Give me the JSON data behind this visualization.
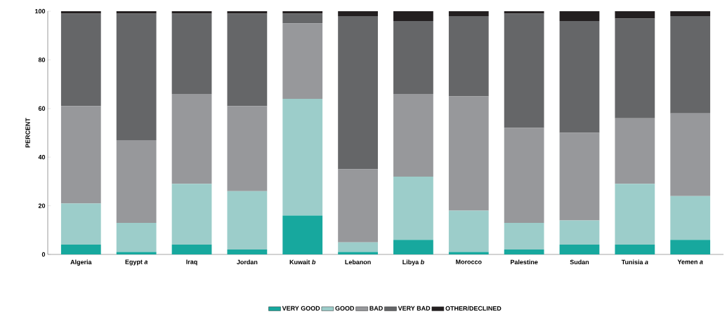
{
  "chart_data": {
    "type": "bar",
    "stacked": true,
    "ylabel": "PERCENT",
    "categories": [
      "Algeria",
      "Egypt *a*",
      "Iraq",
      "Jordan",
      "Kuwait *b*",
      "Lebanon",
      "Libya *b*",
      "Morocco",
      "Palestine",
      "Sudan",
      "Tunisia *a*",
      "Yemen *a*"
    ],
    "series": [
      {
        "name": "VERY GOOD",
        "color": "#17a89e",
        "values": [
          4,
          1,
          4,
          2,
          16,
          1,
          6,
          1,
          2,
          4,
          4,
          6
        ]
      },
      {
        "name": "GOOD",
        "color": "#9ccdca",
        "values": [
          17,
          12,
          25,
          24,
          48,
          4,
          26,
          17,
          11,
          10,
          25,
          18
        ]
      },
      {
        "name": "BAD",
        "color": "#97989b",
        "values": [
          40,
          34,
          37,
          35,
          31,
          30,
          34,
          47,
          39,
          36,
          27,
          34
        ]
      },
      {
        "name": "VERY BAD",
        "color": "#656668",
        "values": [
          38,
          52,
          33,
          38,
          4,
          63,
          30,
          33,
          47,
          46,
          41,
          40
        ]
      },
      {
        "name": "OTHER/DECLINED",
        "color": "#231f20",
        "values": [
          1,
          1,
          1,
          1,
          1,
          2,
          4,
          2,
          1,
          4,
          3,
          2
        ]
      }
    ],
    "ylim": [
      0,
      100
    ],
    "yticks": [
      0,
      20,
      40,
      60,
      80,
      100
    ],
    "legend": "bottom",
    "grid": false
  }
}
